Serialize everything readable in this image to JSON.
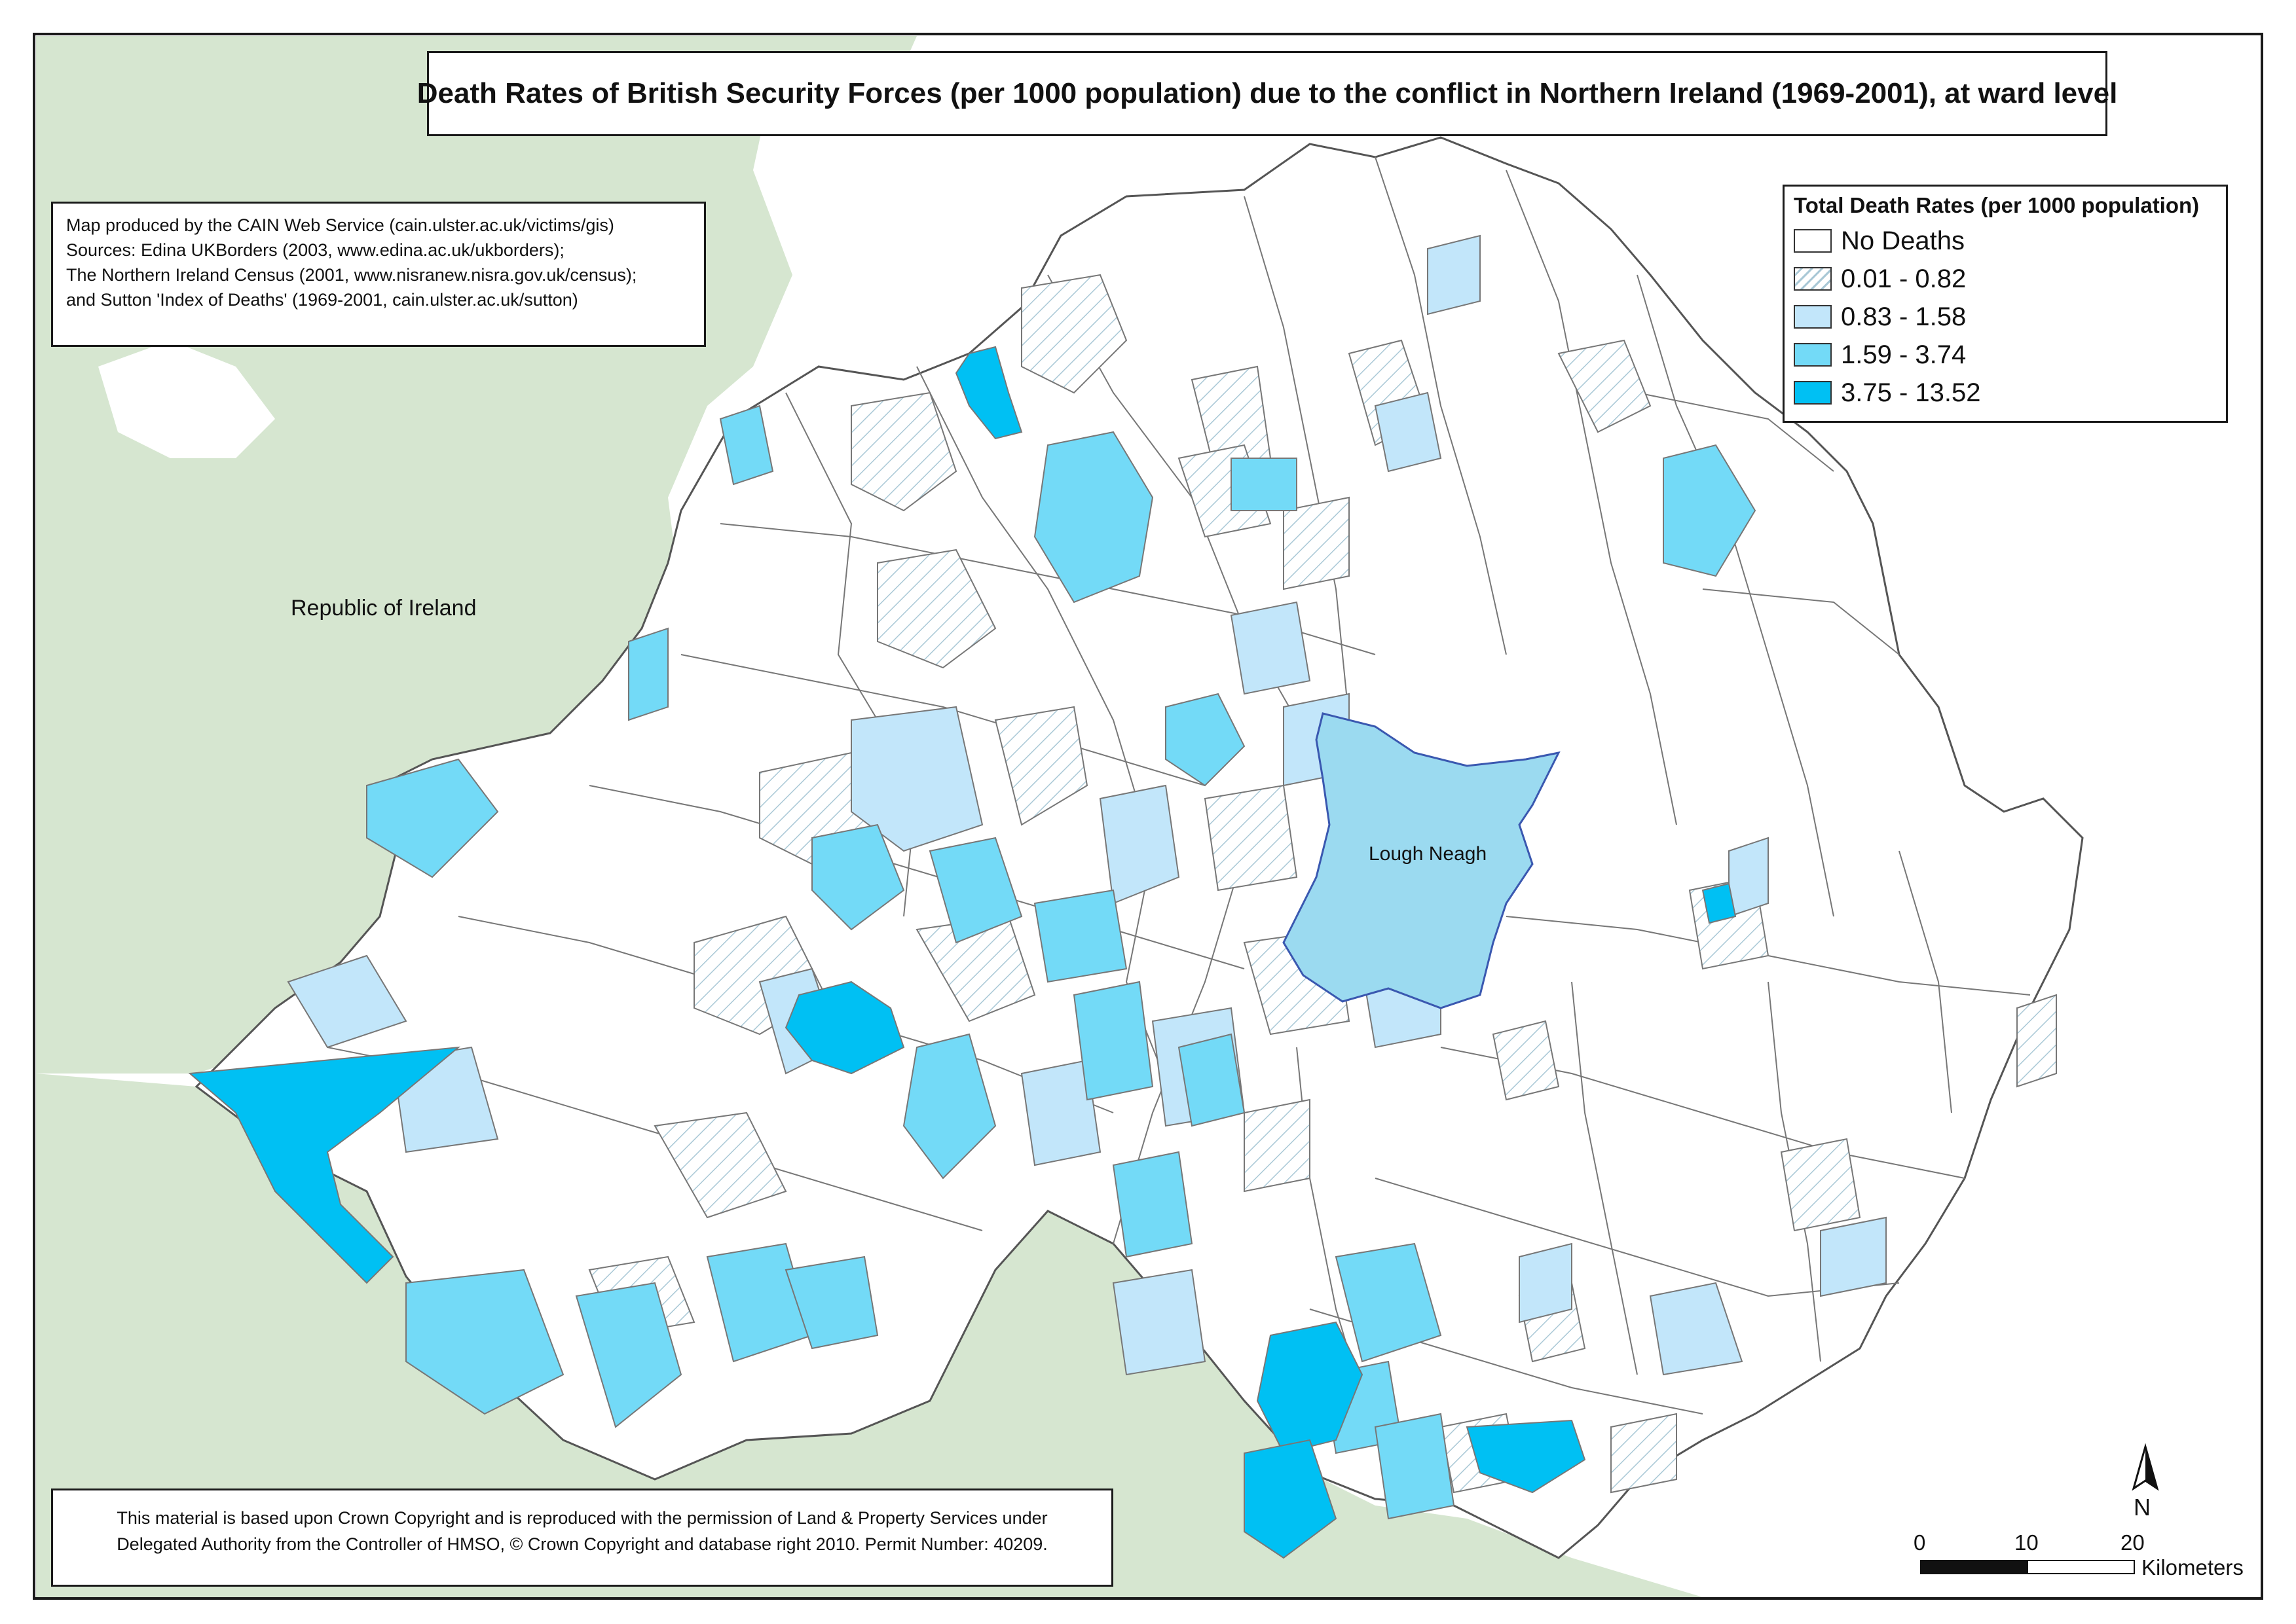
{
  "title": "Death Rates of British Security Forces (per 1000 population) due to the conflict in Northern Ireland (1969-2001), at ward level",
  "credits": [
    "Map produced by the CAIN Web Service (cain.ulster.ac.uk/victims/gis)",
    "Sources: Edina UKBorders (2003, www.edina.ac.uk/ukborders);",
    "The Northern Ireland Census (2001, www.nisranew.nisra.gov.uk/census);",
    "and Sutton 'Index of Deaths' (1969-2001, cain.ulster.ac.uk/sutton)"
  ],
  "legend": {
    "title": "Total Death Rates (per 1000 population)",
    "classes": [
      {
        "label": "No Deaths",
        "fill": "#ffffff",
        "pattern": false
      },
      {
        "label": "0.01 - 0.82",
        "fill": "#ffffff",
        "pattern": true,
        "hatch_color": "#a9c8d6"
      },
      {
        "label": "0.83 - 1.58",
        "fill": "#c2e6fa",
        "pattern": false
      },
      {
        "label": "1.59 - 3.74",
        "fill": "#73daf7",
        "pattern": false
      },
      {
        "label": "3.75 - 13.52",
        "fill": "#00c0f3",
        "pattern": false
      }
    ]
  },
  "map_labels": {
    "republic_of_ireland": "Republic of Ireland",
    "lough_neagh": "Lough Neagh"
  },
  "copyright": [
    "This material is based upon Crown Copyright and is reproduced with the permission of Land & Property Services under",
    "Delegated Authority from the Controller of HMSO, © Crown Copyright and database right 2010. Permit Number: 40209."
  ],
  "north_arrow": {
    "label": "N",
    "icon": "north-arrow-icon"
  },
  "scale_bar": {
    "ticks": [
      "0",
      "10",
      "20"
    ],
    "units": "Kilometers"
  },
  "colors": {
    "land_roi": "#d6e6d0",
    "sea": "#ffffff",
    "lough_neagh": "#9bdaf0",
    "ward_border": "#666666"
  }
}
